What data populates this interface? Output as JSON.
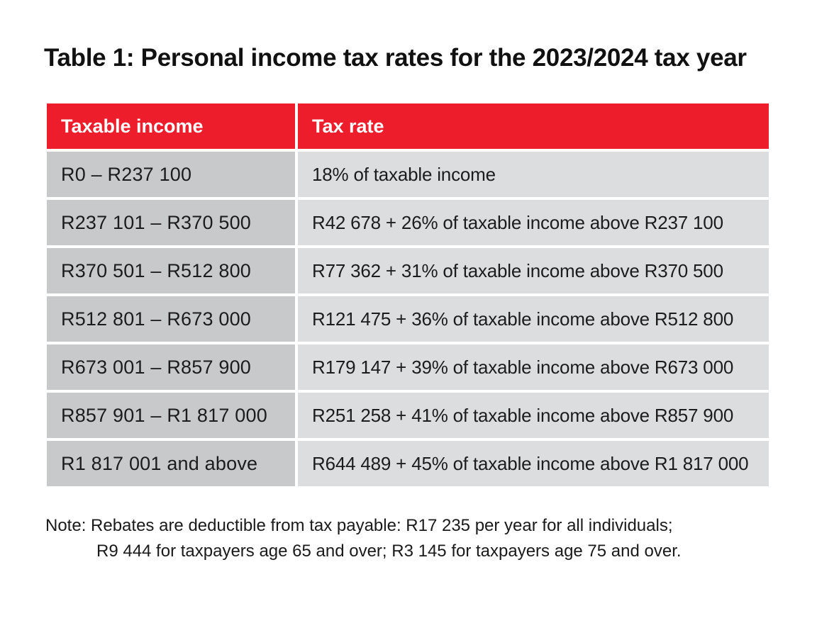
{
  "title": "Table 1: Personal income tax rates for the 2023/2024 tax year",
  "table": {
    "headers": [
      "Taxable income",
      "Tax rate"
    ],
    "rows": [
      {
        "income": "R0 – R237 100",
        "rate": "18% of taxable income"
      },
      {
        "income": "R237 101 – R370 500",
        "rate": "R42 678 + 26% of taxable income above R237 100"
      },
      {
        "income": "R370 501 – R512 800",
        "rate": "R77 362 + 31% of taxable income above R370 500"
      },
      {
        "income": "R512 801 – R673 000",
        "rate": "R121 475 + 36% of taxable income above R512 800"
      },
      {
        "income": "R673 001 – R857 900",
        "rate": "R179 147 + 39% of taxable income above R673 000"
      },
      {
        "income": "R857 901 – R1 817 000",
        "rate": "R251 258 + 41% of taxable income above R857 900"
      },
      {
        "income": "R1 817 001 and above",
        "rate": "R644 489 + 45% of taxable income above R1 817 000"
      }
    ]
  },
  "note": {
    "line1": "Note: Rebates are deductible from tax payable:  R17 235 per year for all individuals;",
    "line2": "R9 444 for taxpayers age 65 and over; R3 145 for taxpayers age 75 and over."
  },
  "colors": {
    "header_bg": "#ee1d2b",
    "income_cell_bg": "#c8c9cb",
    "rate_cell_bg": "#dcdddf"
  }
}
